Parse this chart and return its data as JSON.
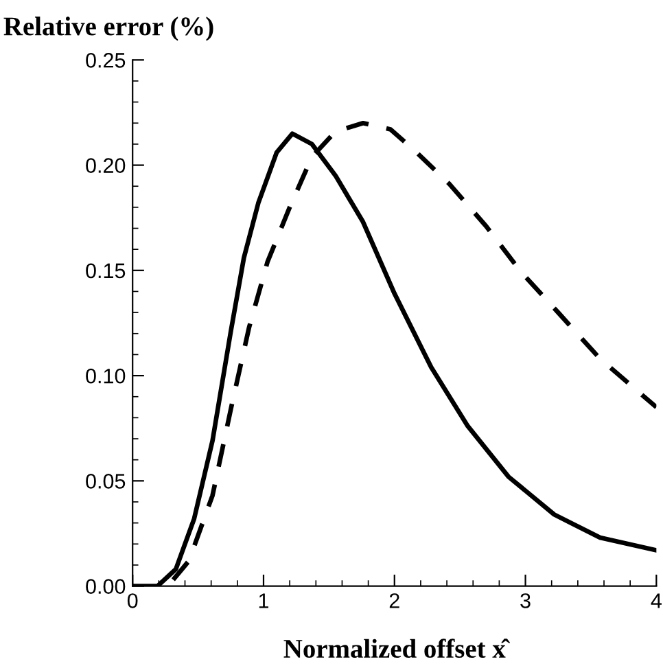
{
  "chart_data": {
    "type": "line",
    "xlabel": "Normalized offset x̂",
    "ylabel": "Relative error (%)",
    "xlim": [
      0,
      4
    ],
    "ylim": [
      0,
      0.25
    ],
    "xticks": [
      0,
      1,
      2,
      3,
      4
    ],
    "yticks": [
      {
        "value": 0,
        "label": "0.00"
      },
      {
        "value": 0.05,
        "label": "0.05"
      },
      {
        "value": 0.1,
        "label": "0.10"
      },
      {
        "value": 0.15,
        "label": "0.15"
      },
      {
        "value": 0.2,
        "label": "0.20"
      },
      {
        "value": 0.25,
        "label": "0.25"
      }
    ],
    "grid": false,
    "legend": false,
    "series": [
      {
        "color": "#000000",
        "line_style": "solid",
        "x": [
          0,
          0.19,
          0.33,
          0.47,
          0.61,
          0.75,
          0.85,
          0.96,
          1.1,
          1.22,
          1.37,
          1.55,
          1.76,
          2.0,
          2.28,
          2.56,
          2.87,
          3.22,
          3.57,
          4.0
        ],
        "values": [
          0,
          0,
          0.008,
          0.032,
          0.069,
          0.121,
          0.156,
          0.182,
          0.206,
          0.215,
          0.21,
          0.195,
          0.173,
          0.139,
          0.104,
          0.076,
          0.052,
          0.034,
          0.023,
          0.017
        ]
      },
      {
        "color": "#000000",
        "line_style": "dashed",
        "x": [
          0.31,
          0.43,
          0.61,
          0.75,
          0.89,
          1.03,
          1.2,
          1.37,
          1.55,
          1.76,
          1.97,
          2.17,
          2.42,
          2.7,
          2.97,
          3.25,
          3.57,
          4.0
        ],
        "values": [
          0.003,
          0.012,
          0.043,
          0.084,
          0.123,
          0.154,
          0.18,
          0.204,
          0.216,
          0.22,
          0.217,
          0.206,
          0.191,
          0.171,
          0.149,
          0.13,
          0.108,
          0.085
        ]
      }
    ]
  }
}
